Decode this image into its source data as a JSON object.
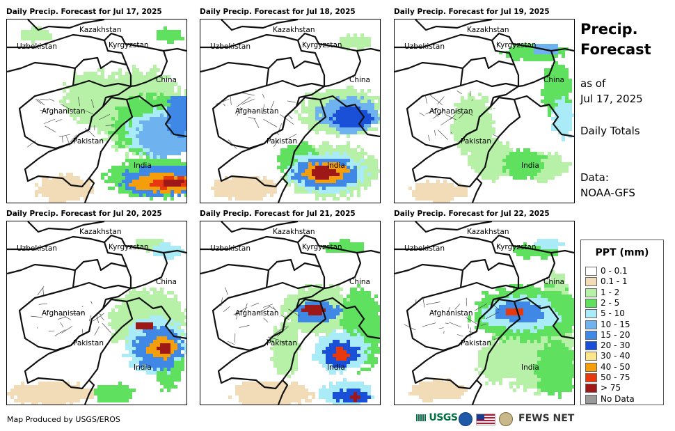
{
  "panels": [
    {
      "title": "Daily Precip. Forecast for Jul 17, 2025",
      "intensity": "high-east"
    },
    {
      "title": "Daily Precip. Forecast for Jul 18, 2025",
      "intensity": "high-center"
    },
    {
      "title": "Daily Precip. Forecast for Jul 19, 2025",
      "intensity": "low"
    },
    {
      "title": "Daily Precip. Forecast for Jul 20, 2025",
      "intensity": "medium-east"
    },
    {
      "title": "Daily Precip. Forecast for Jul 21, 2025",
      "intensity": "medium-center"
    },
    {
      "title": "Daily Precip. Forecast for Jul 22, 2025",
      "intensity": "low-north"
    }
  ],
  "map_labels": {
    "kazakhstan": "Kazakhstan",
    "uzbekistan": "Uzbekistan",
    "kyrgyzstan": "Kyrgyzstan",
    "china": "China",
    "afghanistan": "Afghanistan",
    "pakistan": "Pakistan",
    "india": "India"
  },
  "sidebar": {
    "title_line1": "Precip.",
    "title_line2": "Forecast",
    "asof_line1": "as of",
    "asof_line2": "Jul 17, 2025",
    "daily": "Daily Totals",
    "data_label": "Data:",
    "data_source": "NOAA-GFS"
  },
  "legend": {
    "title": "PPT (mm)",
    "items": [
      {
        "label": "0 - 0.1",
        "color": "#ffffff"
      },
      {
        "label": "0.1 - 1",
        "color": "#f1dcb7"
      },
      {
        "label": "1 - 2",
        "color": "#b6f1a7"
      },
      {
        "label": "2 - 5",
        "color": "#5fe05f"
      },
      {
        "label": "5 - 10",
        "color": "#a9ecf7"
      },
      {
        "label": "10 - 15",
        "color": "#6fb2f0"
      },
      {
        "label": "15 - 20",
        "color": "#3f88e6"
      },
      {
        "label": "20 - 30",
        "color": "#1a4fd8"
      },
      {
        "label": "30 - 40",
        "color": "#fde68a"
      },
      {
        "label": "40 - 50",
        "color": "#f59e0b"
      },
      {
        "label": "50 - 75",
        "color": "#e8380d"
      },
      {
        "label": "> 75",
        "color": "#9f1818"
      },
      {
        "label": "No Data",
        "color": "#9a9a9a"
      }
    ]
  },
  "footer": {
    "credit": "Map Produced by USGS/EROS"
  },
  "logos": {
    "usgs": "USGS",
    "fews": "FEWS NET"
  }
}
